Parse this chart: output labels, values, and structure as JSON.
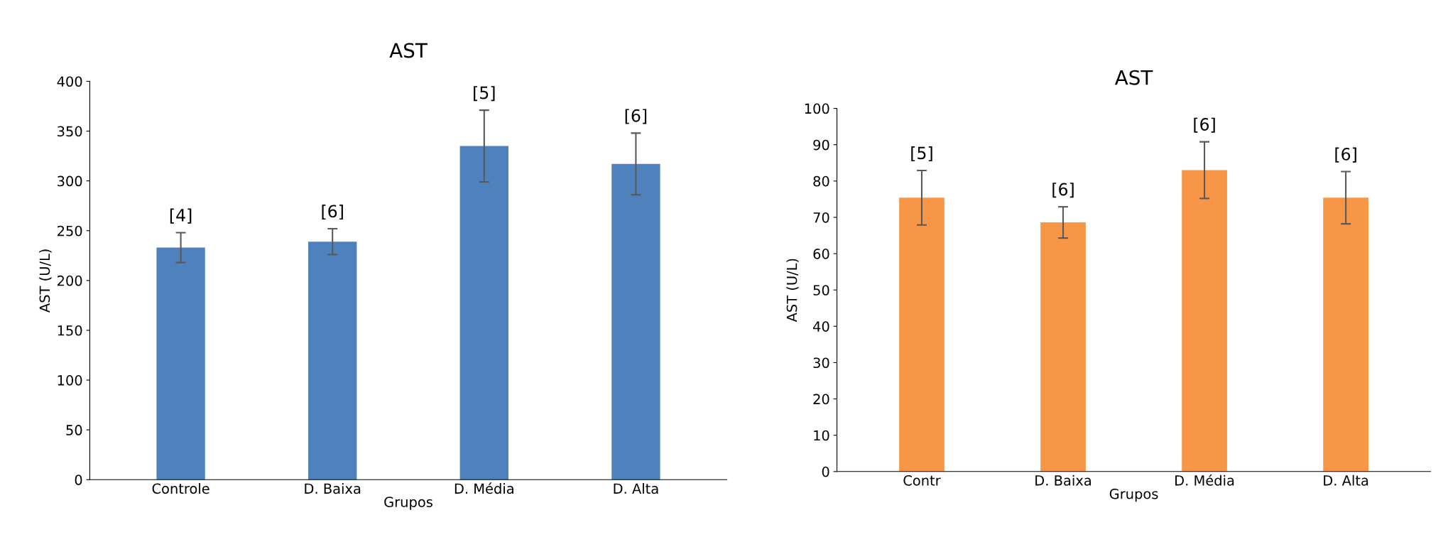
{
  "chart_data": [
    {
      "type": "bar",
      "title": "AST",
      "xlabel": "Grupos",
      "ylabel": "AST (U/L)",
      "categories": [
        "Controle",
        "D. Baixa",
        "D. Média",
        "D. Alta"
      ],
      "values": [
        233,
        239,
        335,
        317
      ],
      "errors": [
        15,
        13,
        36,
        31
      ],
      "color": "#4f81bd",
      "ylim": [
        0,
        400
      ],
      "yticks": [
        0,
        50,
        100,
        150,
        200,
        250,
        300,
        350,
        400
      ],
      "grid": false,
      "legend": false,
      "annotations": [
        {
          "text": "[4]",
          "x": "Controle",
          "y": 248
        },
        {
          "text": "[6]",
          "x": "D. Baixa",
          "y": 252
        },
        {
          "text": "[5]",
          "x": "D. Média",
          "y": 371
        },
        {
          "text": "[6]",
          "x": "D. Alta",
          "y": 348
        }
      ]
    },
    {
      "type": "bar",
      "title": "AST",
      "xlabel": "Grupos",
      "ylabel": "AST (U/L)",
      "categories": [
        "Contr",
        "D. Baixa",
        "D. Média",
        "D. Alta"
      ],
      "values": [
        75.4,
        68.6,
        83,
        75.4
      ],
      "errors": [
        7.5,
        4.3,
        7.8,
        7.2
      ],
      "color": "#f79646",
      "ylim": [
        0,
        100
      ],
      "yticks": [
        0,
        10,
        20,
        30,
        40,
        50,
        60,
        70,
        80,
        90,
        100
      ],
      "grid": false,
      "legend": false,
      "annotations": [
        {
          "text": "[5]",
          "x": "Contr",
          "y": 82.9
        },
        {
          "text": "[6]",
          "x": "D. Baixa",
          "y": 72.9
        },
        {
          "text": "[6]",
          "x": "D. Média",
          "y": 90.8
        },
        {
          "text": "[6]",
          "x": "D. Alta",
          "y": 82.6
        }
      ]
    }
  ]
}
